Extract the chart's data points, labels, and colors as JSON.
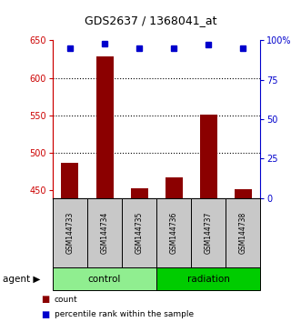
{
  "title": "GDS2637 / 1368041_at",
  "samples": [
    "GSM144733",
    "GSM144734",
    "GSM144735",
    "GSM144736",
    "GSM144737",
    "GSM144738"
  ],
  "groups": [
    {
      "name": "control",
      "color": "#90EE90"
    },
    {
      "name": "radiation",
      "color": "#00CC00"
    }
  ],
  "counts": [
    487,
    628,
    453,
    468,
    551,
    452
  ],
  "percentile_ranks": [
    95,
    98,
    95,
    95,
    97,
    95
  ],
  "ylim_left": [
    440,
    650
  ],
  "ylim_right": [
    0,
    100
  ],
  "yticks_left": [
    450,
    500,
    550,
    600,
    650
  ],
  "yticks_right": [
    0,
    25,
    50,
    75,
    100
  ],
  "ytick_labels_right": [
    "0",
    "25",
    "50",
    "75",
    "100%"
  ],
  "bar_color": "#8B0000",
  "marker_color": "#0000CC",
  "bar_width": 0.5,
  "left_axis_color": "#CC0000",
  "right_axis_color": "#0000CC",
  "sample_box_color": "#C8C8C8",
  "legend_count_label": "count",
  "legend_pct_label": "percentile rank within the sample",
  "grid_yticks": [
    500,
    550,
    600
  ]
}
